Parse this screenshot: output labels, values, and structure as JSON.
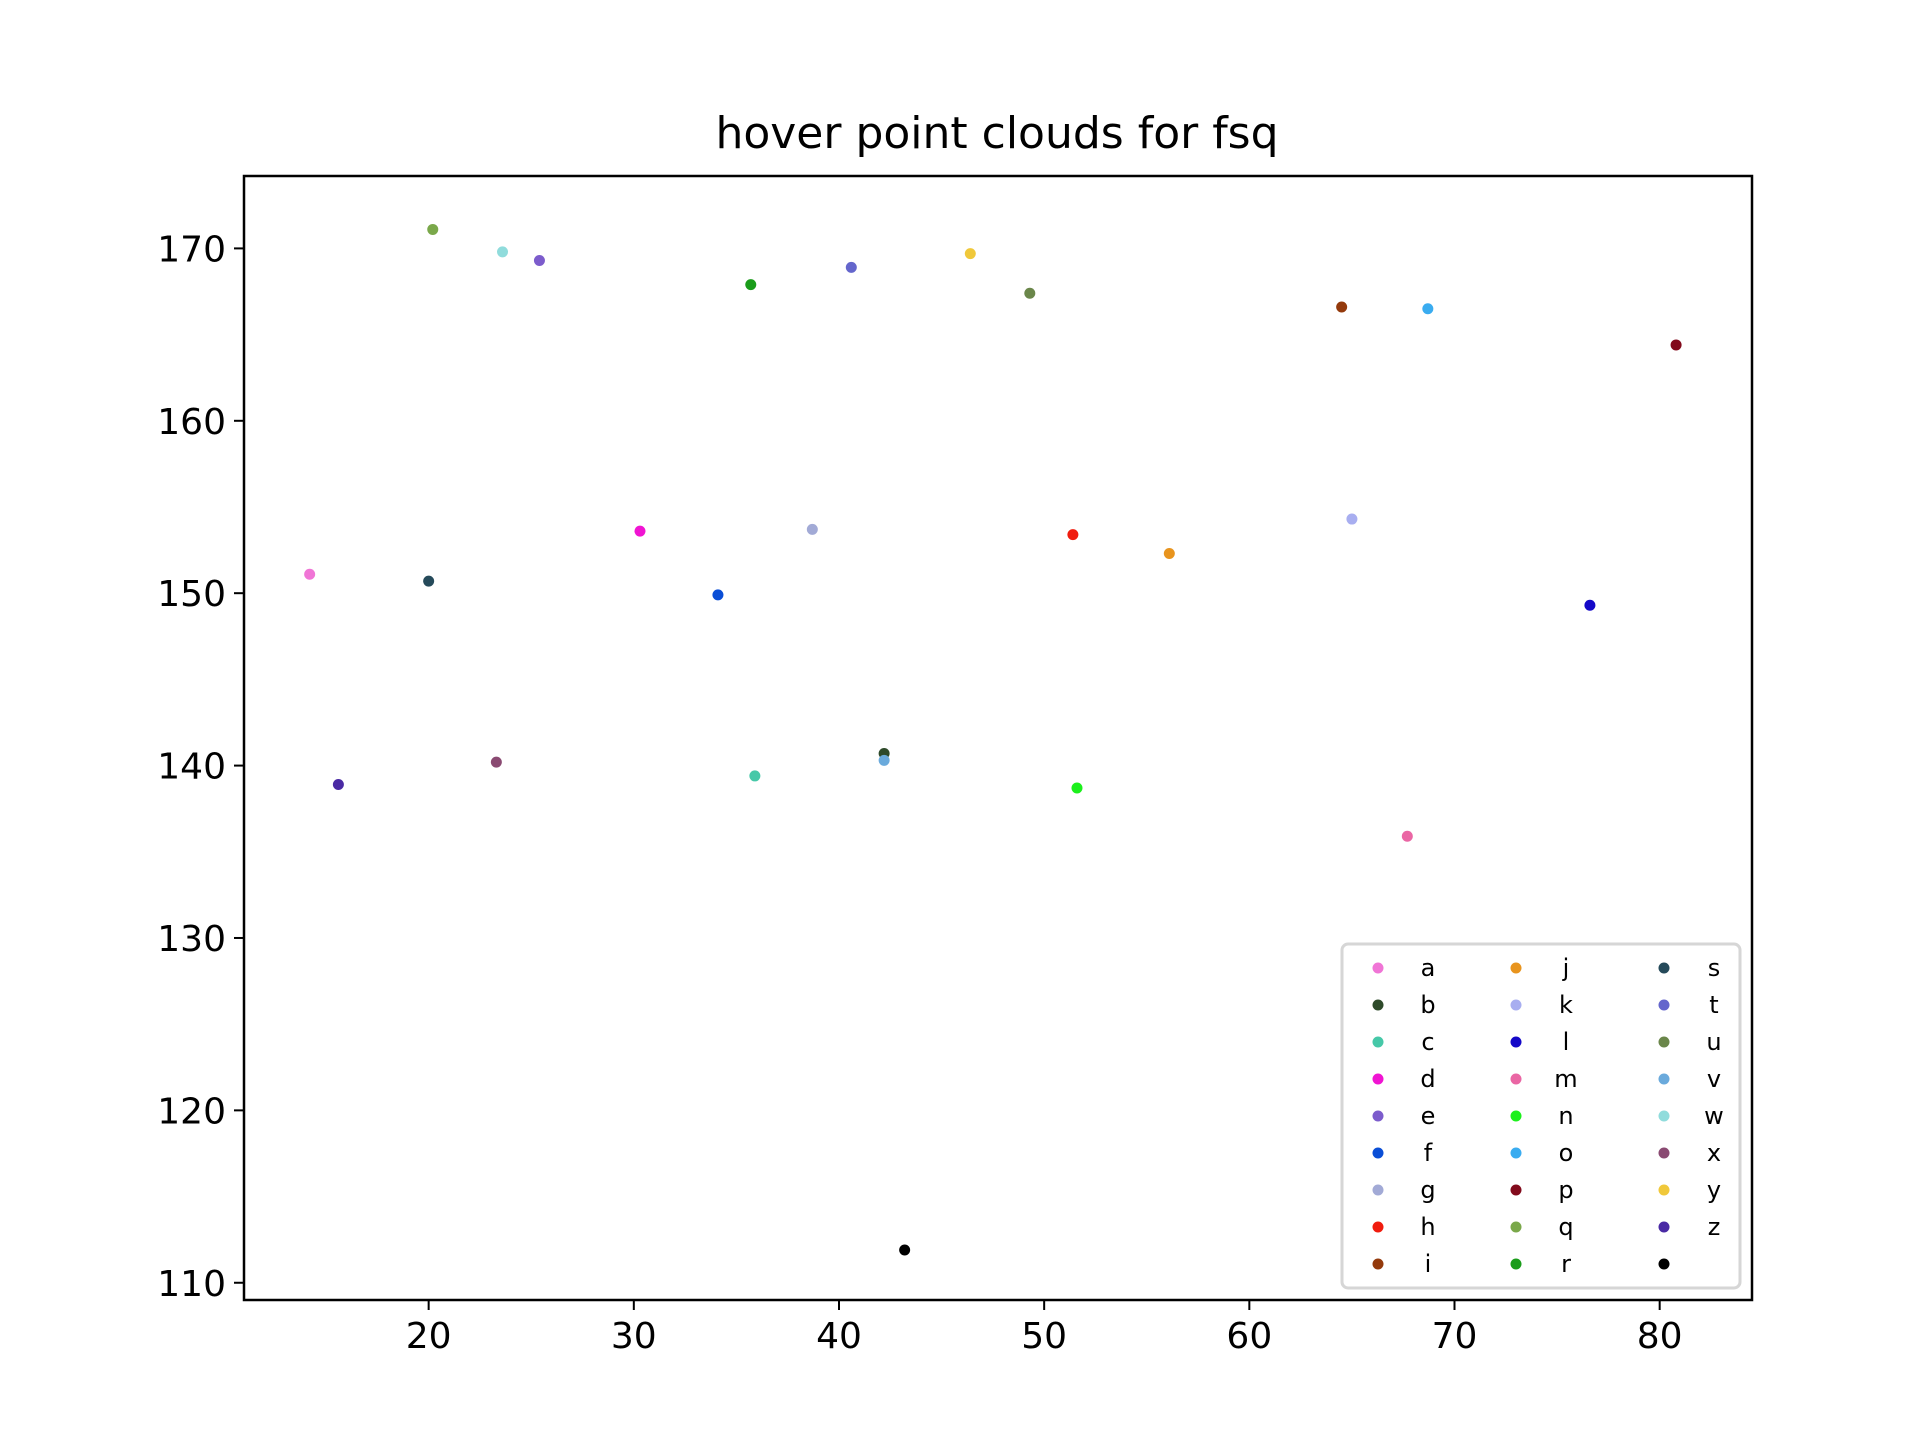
{
  "chart_data": {
    "type": "scatter",
    "title": "hover point clouds for fsq",
    "xlabel": "",
    "ylabel": "",
    "xlim": [
      11,
      84.5
    ],
    "ylim": [
      109,
      174.2
    ],
    "x_ticks": [
      20,
      30,
      40,
      50,
      60,
      70,
      80
    ],
    "y_ticks": [
      110,
      120,
      130,
      140,
      150,
      160,
      170
    ],
    "grid": false,
    "legend_position": "lower-right",
    "legend_columns": 3,
    "series": [
      {
        "name": "a",
        "color": "#f075d6",
        "x": [
          14.2
        ],
        "y": [
          151.1
        ]
      },
      {
        "name": "b",
        "color": "#2e4a2a",
        "x": [
          42.2
        ],
        "y": [
          140.7
        ]
      },
      {
        "name": "c",
        "color": "#46c8a8",
        "x": [
          35.9
        ],
        "y": [
          139.4
        ]
      },
      {
        "name": "d",
        "color": "#f014d2",
        "x": [
          30.3
        ],
        "y": [
          153.6
        ]
      },
      {
        "name": "e",
        "color": "#7c5ccc",
        "x": [
          25.4
        ],
        "y": [
          169.3
        ]
      },
      {
        "name": "f",
        "color": "#0a4ed6",
        "x": [
          34.1
        ],
        "y": [
          149.9
        ]
      },
      {
        "name": "g",
        "color": "#a2aad6",
        "x": [
          38.7
        ],
        "y": [
          153.7
        ]
      },
      {
        "name": "h",
        "color": "#f01c0e",
        "x": [
          51.4
        ],
        "y": [
          153.4
        ]
      },
      {
        "name": "i",
        "color": "#943a0c",
        "x": [
          64.5
        ],
        "y": [
          166.6
        ]
      },
      {
        "name": "j",
        "color": "#e8941e",
        "x": [
          56.1
        ],
        "y": [
          152.3
        ]
      },
      {
        "name": "k",
        "color": "#a8aef0",
        "x": [
          65.0
        ],
        "y": [
          154.3
        ]
      },
      {
        "name": "l",
        "color": "#1408c8",
        "x": [
          76.6
        ],
        "y": [
          149.3
        ]
      },
      {
        "name": "m",
        "color": "#ea66a4",
        "x": [
          67.7
        ],
        "y": [
          135.9
        ]
      },
      {
        "name": "n",
        "color": "#1cf01c",
        "x": [
          51.6
        ],
        "y": [
          138.7
        ]
      },
      {
        "name": "o",
        "color": "#3aacf0",
        "x": [
          68.7
        ],
        "y": [
          166.5
        ]
      },
      {
        "name": "p",
        "color": "#820a1c",
        "x": [
          80.8
        ],
        "y": [
          164.4
        ]
      },
      {
        "name": "q",
        "color": "#7aa84a",
        "x": [
          20.2
        ],
        "y": [
          171.1
        ]
      },
      {
        "name": "r",
        "color": "#1a9c1a",
        "x": [
          35.7
        ],
        "y": [
          167.9
        ]
      },
      {
        "name": "s",
        "color": "#254a5a",
        "x": [
          20.0
        ],
        "y": [
          150.7
        ]
      },
      {
        "name": "t",
        "color": "#6466cc",
        "x": [
          40.6
        ],
        "y": [
          168.9
        ]
      },
      {
        "name": "u",
        "color": "#6a864a",
        "x": [
          49.3
        ],
        "y": [
          167.4
        ]
      },
      {
        "name": "v",
        "color": "#6aaadc",
        "x": [
          42.2
        ],
        "y": [
          140.3
        ]
      },
      {
        "name": "w",
        "color": "#90dcdc",
        "x": [
          23.6
        ],
        "y": [
          169.8
        ]
      },
      {
        "name": "x",
        "color": "#8a4a72",
        "x": [
          23.3
        ],
        "y": [
          140.2
        ]
      },
      {
        "name": "y",
        "color": "#f0c83a",
        "x": [
          46.4
        ],
        "y": [
          169.7
        ]
      },
      {
        "name": "z",
        "color": "#4a2aa4",
        "x": [
          15.6
        ],
        "y": [
          138.9
        ]
      },
      {
        "name": "",
        "color": "#000000",
        "x": [
          43.2
        ],
        "y": [
          111.9
        ]
      }
    ]
  }
}
